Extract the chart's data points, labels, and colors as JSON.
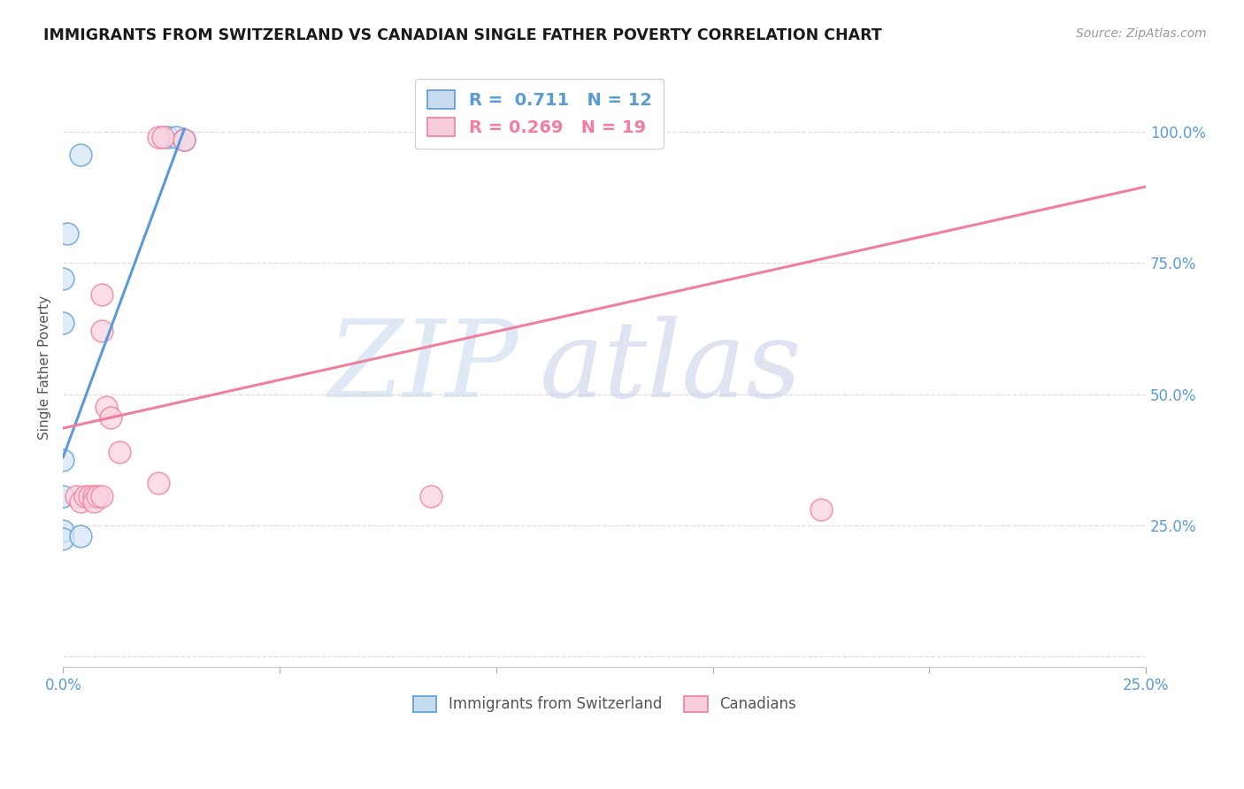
{
  "title": "IMMIGRANTS FROM SWITZERLAND VS CANADIAN SINGLE FATHER POVERTY CORRELATION CHART",
  "source": "Source: ZipAtlas.com",
  "ylabel": "Single Father Poverty",
  "legend_label1": "Immigrants from Switzerland",
  "legend_label2": "Canadians",
  "r1": 0.711,
  "n1": 12,
  "r2": 0.269,
  "n2": 19,
  "color_blue": "#5B9BD5",
  "color_pink": "#F07E9E",
  "background": "#FFFFFF",
  "blue_scatter": [
    [
      0.004,
      0.955
    ],
    [
      0.001,
      0.805
    ],
    [
      0.0,
      0.72
    ],
    [
      0.0,
      0.635
    ],
    [
      0.0,
      0.375
    ],
    [
      0.0,
      0.305
    ],
    [
      0.0,
      0.24
    ],
    [
      0.0,
      0.225
    ],
    [
      0.004,
      0.23
    ],
    [
      0.024,
      0.99
    ],
    [
      0.026,
      0.99
    ],
    [
      0.028,
      0.985
    ]
  ],
  "pink_scatter": [
    [
      0.003,
      0.305
    ],
    [
      0.004,
      0.295
    ],
    [
      0.005,
      0.305
    ],
    [
      0.006,
      0.305
    ],
    [
      0.007,
      0.305
    ],
    [
      0.007,
      0.295
    ],
    [
      0.008,
      0.305
    ],
    [
      0.009,
      0.305
    ],
    [
      0.009,
      0.69
    ],
    [
      0.009,
      0.62
    ],
    [
      0.01,
      0.475
    ],
    [
      0.011,
      0.455
    ],
    [
      0.013,
      0.39
    ],
    [
      0.022,
      0.99
    ],
    [
      0.023,
      0.99
    ],
    [
      0.028,
      0.985
    ],
    [
      0.022,
      0.33
    ],
    [
      0.085,
      0.305
    ],
    [
      0.175,
      0.28
    ]
  ],
  "blue_line_x": [
    0.0,
    0.028
  ],
  "blue_line_y": [
    0.38,
    1.005
  ],
  "pink_line_x": [
    0.0,
    0.25
  ],
  "pink_line_y": [
    0.435,
    0.895
  ],
  "xlim": [
    0.0,
    0.25
  ],
  "ylim": [
    -0.02,
    1.12
  ],
  "yticks": [
    0.0,
    0.25,
    0.5,
    0.75,
    1.0
  ],
  "ytick_labels_right": [
    "",
    "25.0%",
    "50.0%",
    "75.0%",
    "100.0%"
  ],
  "xticks": [
    0.0,
    0.05,
    0.1,
    0.15,
    0.2,
    0.25
  ],
  "xtick_labels": [
    "0.0%",
    "",
    "",
    "",
    "",
    "25.0%"
  ],
  "grid_color": "#DDDDDD",
  "watermark_zip_color": "#C8D8EC",
  "watermark_atlas_color": "#C8CCE0"
}
